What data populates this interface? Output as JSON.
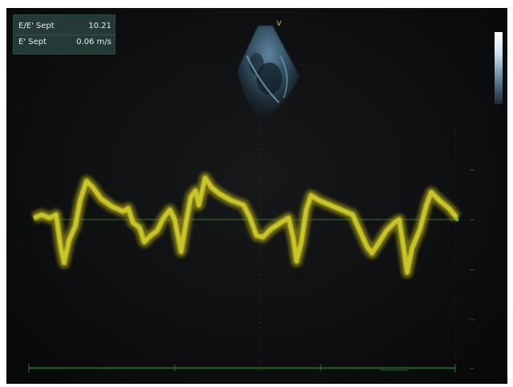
{
  "measurements": [
    {
      "label": "E/E' Sept",
      "value": "10.21"
    },
    {
      "label": "E' Sept",
      "value": "0.06 m/s"
    }
  ],
  "colors": {
    "waveform": "#d4cf2a",
    "waveform_glow": "#8e8a16",
    "baseline": "#3a8f3a",
    "panel": "#243a36",
    "image_orientation_marker": "#d6c431"
  },
  "icons": {
    "orientation_marker": "v-marker-icon",
    "baseline_marker": "green-dot-icon"
  }
}
